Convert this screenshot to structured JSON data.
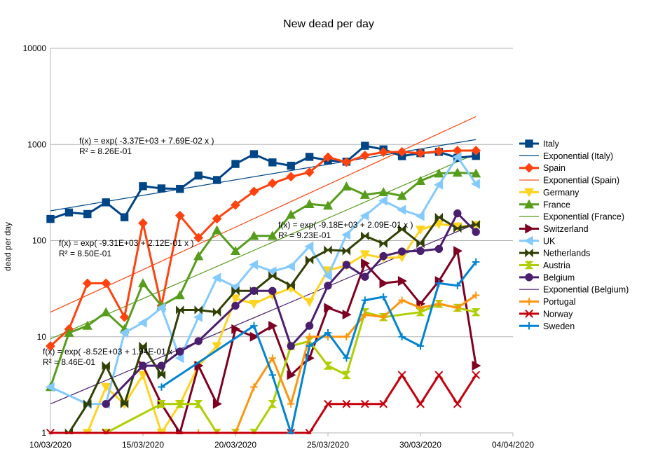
{
  "chart_data": {
    "type": "line",
    "title": "New dead per day",
    "xlabel": "",
    "ylabel": "dead per day",
    "yscale": "log",
    "ylim": [
      1,
      10000
    ],
    "y_ticks": [
      "10000",
      "1000",
      "100",
      "10",
      "1"
    ],
    "y_tick_values": [
      10000,
      1000,
      100,
      10,
      1
    ],
    "xlim": [
      "2020-03-10",
      "2020-04-04"
    ],
    "x_ticks": [
      "10/03/2020",
      "15/03/2020",
      "20/03/2020",
      "25/03/2020",
      "30/03/2020",
      "04/04/2020"
    ],
    "x_tick_values": [
      "2020-03-10",
      "2020-03-15",
      "2020-03-20",
      "2020-03-25",
      "2020-03-30",
      "2020-04-04"
    ],
    "grid": "horizontal",
    "legend_position": "right",
    "series": [
      {
        "name": "Italy",
        "color": "#004586",
        "marker": "square",
        "x": [
          "2020-03-10",
          "2020-03-11",
          "2020-03-12",
          "2020-03-13",
          "2020-03-14",
          "2020-03-15",
          "2020-03-16",
          "2020-03-17",
          "2020-03-18",
          "2020-03-19",
          "2020-03-20",
          "2020-03-21",
          "2020-03-22",
          "2020-03-23",
          "2020-03-24",
          "2020-03-25",
          "2020-03-26",
          "2020-03-27",
          "2020-03-28",
          "2020-03-29",
          "2020-03-30",
          "2020-03-31",
          "2020-04-01",
          "2020-04-02"
        ],
        "y": [
          168,
          196,
          189,
          250,
          175,
          368,
          349,
          345,
          475,
          427,
          627,
          793,
          651,
          601,
          743,
          683,
          662,
          969,
          889,
          756,
          812,
          837,
          727,
          760
        ]
      },
      {
        "name": "Spain",
        "color": "#ff420e",
        "marker": "diamond",
        "x": [
          "2020-03-10",
          "2020-03-11",
          "2020-03-12",
          "2020-03-13",
          "2020-03-14",
          "2020-03-15",
          "2020-03-16",
          "2020-03-17",
          "2020-03-18",
          "2020-03-19",
          "2020-03-20",
          "2020-03-21",
          "2020-03-22",
          "2020-03-23",
          "2020-03-24",
          "2020-03-25",
          "2020-03-26",
          "2020-03-27",
          "2020-03-28",
          "2020-03-29",
          "2020-03-30",
          "2020-03-31",
          "2020-04-01",
          "2020-04-02"
        ],
        "y": [
          8,
          12,
          36,
          36,
          16,
          152,
          21,
          182,
          107,
          169,
          235,
          324,
          394,
          462,
          514,
          738,
          655,
          769,
          832,
          838,
          812,
          849,
          864,
          864
        ]
      },
      {
        "name": "Germany",
        "color": "#ffd320",
        "marker": "triangle-down",
        "x": [
          "2020-03-12",
          "2020-03-13",
          "2020-03-14",
          "2020-03-15",
          "2020-03-16",
          "2020-03-17",
          "2020-03-18",
          "2020-03-19",
          "2020-03-20",
          "2020-03-21",
          "2020-03-22",
          "2020-03-23",
          "2020-03-24",
          "2020-03-25",
          "2020-03-26",
          "2020-03-27",
          "2020-03-28",
          "2020-03-29",
          "2020-03-30",
          "2020-03-31",
          "2020-04-01",
          "2020-04-02"
        ],
        "y": [
          1,
          3,
          2,
          4,
          1,
          2,
          5,
          8,
          25,
          22,
          27,
          32,
          23,
          49,
          55,
          72,
          66,
          67,
          130,
          149,
          140,
          145
        ]
      },
      {
        "name": "France",
        "color": "#579d1c",
        "marker": "triangle-up",
        "x": [
          "2020-03-10",
          "2020-03-11",
          "2020-03-12",
          "2020-03-13",
          "2020-03-14",
          "2020-03-15",
          "2020-03-16",
          "2020-03-17",
          "2020-03-18",
          "2020-03-19",
          "2020-03-20",
          "2020-03-21",
          "2020-03-22",
          "2020-03-23",
          "2020-03-24",
          "2020-03-25",
          "2020-03-26",
          "2020-03-27",
          "2020-03-28",
          "2020-03-29",
          "2020-03-30",
          "2020-03-31",
          "2020-04-01",
          "2020-04-02"
        ],
        "y": [
          3,
          11,
          13,
          18,
          12,
          36,
          21,
          27,
          69,
          128,
          78,
          112,
          112,
          186,
          240,
          231,
          365,
          299,
          319,
          292,
          418,
          499,
          509,
          499
        ]
      },
      {
        "name": "Switzerland",
        "color": "#7e0021",
        "marker": "triangle-right",
        "x": [
          "2020-03-15",
          "2020-03-16",
          "2020-03-17",
          "2020-03-18",
          "2020-03-19",
          "2020-03-20",
          "2020-03-21",
          "2020-03-22",
          "2020-03-23",
          "2020-03-24",
          "2020-03-25",
          "2020-03-26",
          "2020-03-27",
          "2020-03-28",
          "2020-03-29",
          "2020-03-30",
          "2020-03-31",
          "2020-04-01",
          "2020-04-02"
        ],
        "y": [
          5,
          2,
          1,
          5,
          2,
          12,
          10,
          13,
          4,
          6,
          20,
          17,
          58,
          36,
          38,
          22,
          38,
          78,
          5
        ]
      },
      {
        "name": "UK",
        "color": "#83caff",
        "marker": "triangle-left",
        "x": [
          "2020-03-10",
          "2020-03-12",
          "2020-03-13",
          "2020-03-14",
          "2020-03-15",
          "2020-03-16",
          "2020-03-17",
          "2020-03-18",
          "2020-03-19",
          "2020-03-20",
          "2020-03-21",
          "2020-03-22",
          "2020-03-23",
          "2020-03-24",
          "2020-03-25",
          "2020-03-26",
          "2020-03-27",
          "2020-03-28",
          "2020-03-29",
          "2020-03-30",
          "2020-03-31",
          "2020-04-01",
          "2020-04-02"
        ],
        "y": [
          3,
          2,
          2,
          11,
          14,
          20,
          6,
          16,
          41,
          33,
          56,
          48,
          54,
          87,
          43,
          115,
          181,
          260,
          209,
          180,
          381,
          743,
          389
        ]
      },
      {
        "name": "Netherlands",
        "color": "#314004",
        "marker": "bowtie",
        "x": [
          "2020-03-11",
          "2020-03-12",
          "2020-03-13",
          "2020-03-14",
          "2020-03-15",
          "2020-03-16",
          "2020-03-17",
          "2020-03-18",
          "2020-03-19",
          "2020-03-20",
          "2020-03-21",
          "2020-03-22",
          "2020-03-23",
          "2020-03-24",
          "2020-03-25",
          "2020-03-26",
          "2020-03-27",
          "2020-03-28",
          "2020-03-29",
          "2020-03-30",
          "2020-03-31",
          "2020-04-01",
          "2020-04-02"
        ],
        "y": [
          1,
          2,
          5,
          2,
          8,
          4,
          19,
          19,
          18,
          30,
          30,
          43,
          34,
          63,
          80,
          78,
          112,
          93,
          132,
          93,
          175,
          134,
          147
        ]
      },
      {
        "name": "Austria",
        "color": "#aecf00",
        "marker": "hourglass",
        "x": [
          "2020-03-13",
          "2020-03-16",
          "2020-03-17",
          "2020-03-18",
          "2020-03-19",
          "2020-03-20",
          "2020-03-21",
          "2020-03-22",
          "2020-03-23",
          "2020-03-24",
          "2020-03-25",
          "2020-03-26",
          "2020-03-27",
          "2020-03-28",
          "2020-03-30",
          "2020-03-31",
          "2020-04-01",
          "2020-04-02"
        ],
        "y": [
          1,
          2,
          2,
          2,
          1,
          1,
          1,
          2,
          8,
          9,
          5,
          4,
          18,
          16,
          18,
          22,
          20,
          18
        ]
      },
      {
        "name": "Belgium",
        "color": "#4b1f6f",
        "marker": "circle",
        "x": [
          "2020-03-13",
          "2020-03-15",
          "2020-03-16",
          "2020-03-17",
          "2020-03-18",
          "2020-03-20",
          "2020-03-21",
          "2020-03-22",
          "2020-03-23",
          "2020-03-24",
          "2020-03-25",
          "2020-03-26",
          "2020-03-27",
          "2020-03-28",
          "2020-03-29",
          "2020-03-30",
          "2020-03-31",
          "2020-04-01",
          "2020-04-02"
        ],
        "y": [
          2,
          5,
          5,
          7,
          9,
          21,
          30,
          30,
          8,
          13,
          34,
          56,
          42,
          69,
          77,
          78,
          82,
          192,
          123
        ]
      },
      {
        "name": "Portugal",
        "color": "#ff950e",
        "marker": "plus",
        "x": [
          "2020-03-18",
          "2020-03-19",
          "2020-03-20",
          "2020-03-21",
          "2020-03-22",
          "2020-03-23",
          "2020-03-24",
          "2020-03-25",
          "2020-03-26",
          "2020-03-27",
          "2020-03-28",
          "2020-03-29",
          "2020-03-30",
          "2020-03-31",
          "2020-04-01",
          "2020-04-02"
        ],
        "y": [
          1,
          1,
          1,
          3,
          6,
          2,
          10,
          10,
          10,
          17,
          16,
          24,
          20,
          22,
          20,
          27
        ]
      },
      {
        "name": "Norway",
        "color": "#c5000b",
        "marker": "cross",
        "x": [
          "2020-03-10",
          "2020-03-13",
          "2020-03-23",
          "2020-03-24",
          "2020-03-25",
          "2020-03-26",
          "2020-03-27",
          "2020-03-28",
          "2020-03-29",
          "2020-03-30",
          "2020-03-31",
          "2020-04-01",
          "2020-04-02"
        ],
        "y": [
          1,
          1,
          1,
          1,
          2,
          2,
          2,
          2,
          4,
          2,
          4,
          2,
          4
        ]
      },
      {
        "name": "Sweden",
        "color": "#0084d1",
        "marker": "plus",
        "x": [
          "2020-03-16",
          "2020-03-21",
          "2020-03-22",
          "2020-03-23",
          "2020-03-24",
          "2020-03-25",
          "2020-03-26",
          "2020-03-27",
          "2020-03-28",
          "2020-03-29",
          "2020-03-30",
          "2020-03-31",
          "2020-04-01",
          "2020-04-02"
        ],
        "y": [
          3,
          13,
          4,
          1,
          8,
          11,
          6,
          24,
          26,
          10,
          8,
          36,
          34,
          60
        ]
      }
    ],
    "trendlines": [
      {
        "name": "Exponential (Italy)",
        "of": "Italy",
        "color": "#004586",
        "x": [
          "2020-03-10",
          "2020-04-02"
        ],
        "y": [
          204,
          1125
        ],
        "equation": "f(x) = exp( -3.37E+03 + 7.69E-02 x )",
        "r2": "R² = 8.26E-01"
      },
      {
        "name": "Exponential (Spain)",
        "of": "Spain",
        "color": "#ff420e",
        "x": [
          "2020-03-10",
          "2020-04-02"
        ],
        "y": [
          18,
          1950
        ],
        "equation": "f(x) = exp( -9.31E+03 + 2.12E-01 x )",
        "r2": "R² = 8.50E-01"
      },
      {
        "name": "Exponential (France)",
        "of": "France",
        "color": "#579d1c",
        "x": [
          "2020-03-10",
          "2020-04-02"
        ],
        "y": [
          9.5,
          800
        ],
        "equation": "f(x) = exp( -8.52E+03 + 1.94E-01 x )",
        "r2": "R² = 8.46E-01"
      },
      {
        "name": "Exponential (Belgium)",
        "of": "Belgium",
        "color": "#4b1f6f",
        "x": [
          "2020-03-10",
          "2020-04-02"
        ],
        "y": [
          2,
          150
        ],
        "equation": "f(x) = exp( -9.18E+03 + 2.09E-01 x )",
        "r2": "R² = 9.23E-01"
      }
    ],
    "annotations": [
      {
        "text": "f(x) = exp( -3.37E+03 + 7.69E-02 x )"
      },
      {
        "text": "R² = 8.26E-01"
      },
      {
        "text": "f(x) = exp( -9.31E+03 + 2.12E-01 x )"
      },
      {
        "text": "R² = 8.50E-01"
      },
      {
        "text": "f(x) = exp( -9.18E+03 + 2.09E-01 x )"
      },
      {
        "text": "R² = 9.23E-01"
      },
      {
        "text": "f(x) = exp( -8.52E+03 + 1.94E-01 x )"
      },
      {
        "text": "R² = 8.46E-01"
      }
    ],
    "legend": [
      "Italy",
      "Exponential (Italy)",
      "Spain",
      "Exponential (Spain)",
      "Germany",
      "France",
      "Exponential (France)",
      "Switzerland",
      "UK",
      "Netherlands",
      "Austria",
      "Belgium",
      "Exponential (Belgium)",
      "Portugal",
      "Norway",
      "Sweden"
    ]
  }
}
